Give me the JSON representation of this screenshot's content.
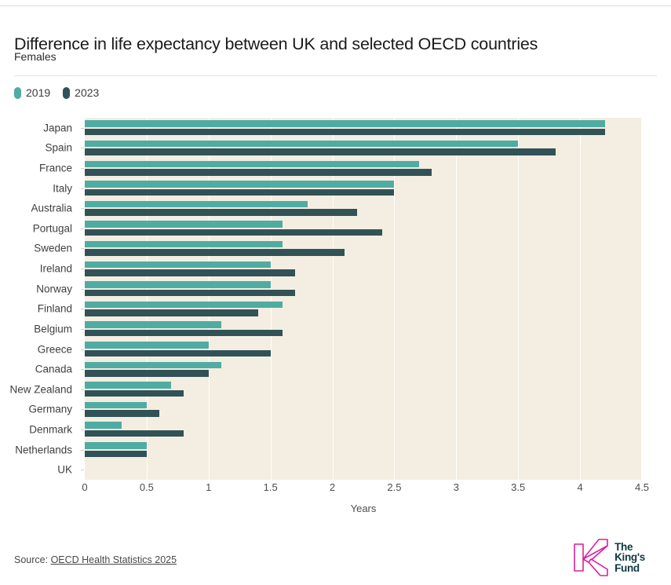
{
  "header": {
    "title": "Difference in life expectancy between UK and selected OECD countries",
    "subtitle": "Females"
  },
  "chart_data": {
    "type": "bar",
    "orientation": "horizontal",
    "title": "Difference in life expectancy between UK and selected OECD countries",
    "subtitle": "Females",
    "categories": [
      "Japan",
      "Spain",
      "France",
      "Italy",
      "Australia",
      "Portugal",
      "Sweden",
      "Ireland",
      "Norway",
      "Finland",
      "Belgium",
      "Greece",
      "Canada",
      "New Zealand",
      "Germany",
      "Denmark",
      "Netherlands",
      "UK"
    ],
    "series": [
      {
        "name": "2019",
        "color": "#4faca2",
        "values": [
          4.2,
          3.5,
          2.7,
          2.5,
          1.8,
          1.6,
          1.6,
          1.5,
          1.5,
          1.6,
          1.1,
          1.0,
          1.1,
          0.7,
          0.5,
          0.3,
          0.5,
          0
        ]
      },
      {
        "name": "2023",
        "color": "#315257",
        "values": [
          4.2,
          3.8,
          2.8,
          2.5,
          2.2,
          2.4,
          2.1,
          1.7,
          1.7,
          1.4,
          1.6,
          1.5,
          1.0,
          0.8,
          0.6,
          0.8,
          0.5,
          0
        ]
      }
    ],
    "xlabel": "Years",
    "xlim": [
      0,
      4.5
    ],
    "x_ticks": [
      0,
      0.5,
      1,
      1.5,
      2,
      2.5,
      3,
      3.5,
      4,
      4.5
    ],
    "grid": true,
    "plot_background": "#f3eee1",
    "legend_position": "top-left"
  },
  "footer": {
    "source_prefix": "Source: ",
    "source_link": "OECD Health Statistics 2025",
    "logo": {
      "lines": [
        "The",
        "King's",
        "Fund"
      ],
      "text_color": "#0d3a40",
      "mark_color": "#dd1f9a"
    }
  }
}
